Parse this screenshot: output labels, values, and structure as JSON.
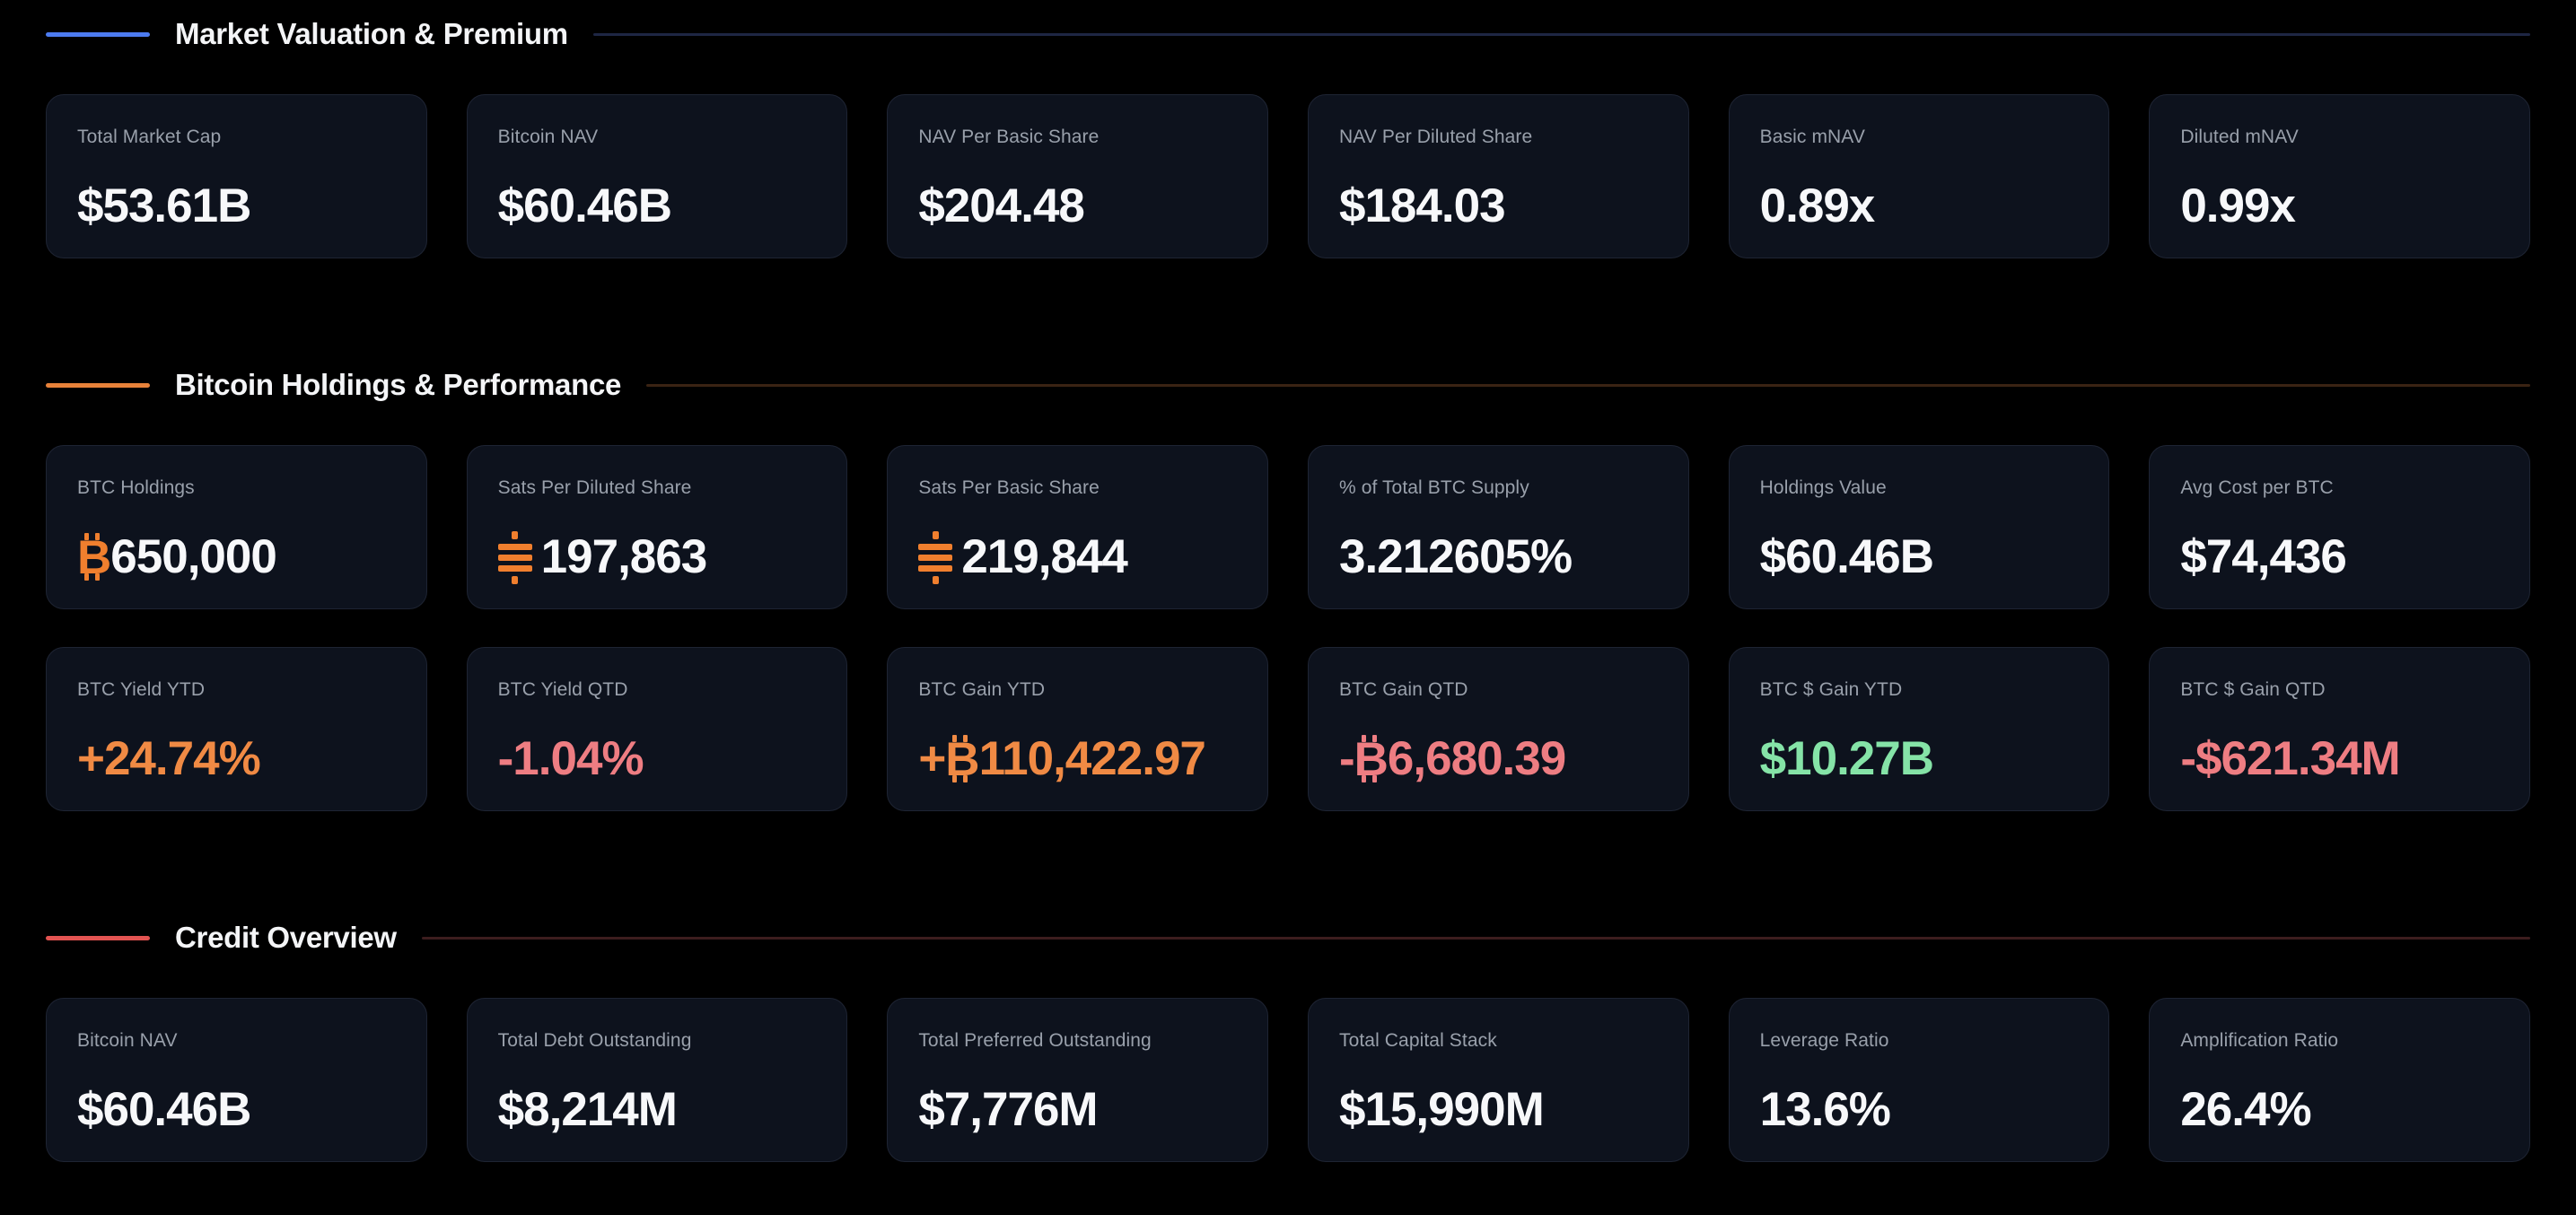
{
  "page": {
    "bg": "#000000"
  },
  "colors": {
    "white": "#f7f8fa",
    "orange": "#f08a44",
    "pink": "#ee7d82",
    "green": "#85e3a7",
    "bitcoin": "#f07f2e",
    "label": "#99a0ab",
    "card_bg": "#0d121d",
    "card_border": "#1e2433"
  },
  "sections": [
    {
      "title": "Market Valuation & Premium",
      "accent": "#4c7bf0",
      "rule_color": "#1e2644",
      "rows": [
        [
          {
            "label": "Total Market Cap",
            "value": "$53.61B",
            "parts": [
              {
                "kind": "text",
                "text": "$53.61B",
                "color": "white"
              }
            ]
          },
          {
            "label": "Bitcoin NAV",
            "value": "$60.46B",
            "parts": [
              {
                "kind": "text",
                "text": "$60.46B",
                "color": "white"
              }
            ]
          },
          {
            "label": "NAV Per Basic Share",
            "value": "$204.48",
            "parts": [
              {
                "kind": "text",
                "text": "$204.48",
                "color": "white"
              }
            ]
          },
          {
            "label": "NAV Per Diluted Share",
            "value": "$184.03",
            "parts": [
              {
                "kind": "text",
                "text": "$184.03",
                "color": "white"
              }
            ]
          },
          {
            "label": "Basic mNAV",
            "value": "0.89x",
            "parts": [
              {
                "kind": "text",
                "text": "0.89x",
                "color": "white"
              }
            ]
          },
          {
            "label": "Diluted mNAV",
            "value": "0.99x",
            "parts": [
              {
                "kind": "text",
                "text": "0.99x",
                "color": "white"
              }
            ]
          }
        ]
      ]
    },
    {
      "title": "Bitcoin Holdings & Performance",
      "accent": "#e8823a",
      "rule_color": "#3a2313",
      "rows": [
        [
          {
            "label": "BTC Holdings",
            "value": "₿650,000",
            "parts": [
              {
                "kind": "btc",
                "color": "bitcoin"
              },
              {
                "kind": "text",
                "text": "650,000",
                "color": "white"
              }
            ]
          },
          {
            "label": "Sats Per Diluted Share",
            "value": "197,863",
            "parts": [
              {
                "kind": "sats",
                "color": "bitcoin"
              },
              {
                "kind": "text",
                "text": "197,863",
                "color": "white"
              }
            ]
          },
          {
            "label": "Sats Per Basic Share",
            "value": "219,844",
            "parts": [
              {
                "kind": "sats",
                "color": "bitcoin"
              },
              {
                "kind": "text",
                "text": "219,844",
                "color": "white"
              }
            ]
          },
          {
            "label": "% of Total BTC Supply",
            "value": "3.212605%",
            "parts": [
              {
                "kind": "text",
                "text": "3.212605%",
                "color": "white"
              }
            ]
          },
          {
            "label": "Holdings Value",
            "value": "$60.46B",
            "parts": [
              {
                "kind": "text",
                "text": "$60.46B",
                "color": "white"
              }
            ]
          },
          {
            "label": "Avg Cost per BTC",
            "value": "$74,436",
            "parts": [
              {
                "kind": "text",
                "text": "$74,436",
                "color": "white"
              }
            ]
          }
        ],
        [
          {
            "label": "BTC Yield YTD",
            "value": "+24.74%",
            "parts": [
              {
                "kind": "text",
                "text": "+24.74%",
                "color": "orange"
              }
            ]
          },
          {
            "label": "BTC Yield QTD",
            "value": "-1.04%",
            "parts": [
              {
                "kind": "text",
                "text": "-1.04%",
                "color": "pink"
              }
            ]
          },
          {
            "label": "BTC Gain YTD",
            "value": "+₿110,422.97",
            "parts": [
              {
                "kind": "text",
                "text": "+",
                "color": "orange"
              },
              {
                "kind": "btc",
                "color": "orange"
              },
              {
                "kind": "text",
                "text": "110,422.97",
                "color": "orange"
              }
            ]
          },
          {
            "label": "BTC Gain QTD",
            "value": "-₿6,680.39",
            "parts": [
              {
                "kind": "text",
                "text": "-",
                "color": "pink"
              },
              {
                "kind": "btc",
                "color": "pink"
              },
              {
                "kind": "text",
                "text": "6,680.39",
                "color": "pink"
              }
            ]
          },
          {
            "label": "BTC $ Gain YTD",
            "value": "$10.27B",
            "parts": [
              {
                "kind": "text",
                "text": "$10.27B",
                "color": "green"
              }
            ]
          },
          {
            "label": "BTC $ Gain QTD",
            "value": "-$621.34M",
            "parts": [
              {
                "kind": "text",
                "text": "-$621.34M",
                "color": "pink"
              }
            ]
          }
        ]
      ]
    },
    {
      "title": "Credit Overview",
      "accent": "#e25351",
      "rule_color": "#3c1d1e",
      "rows": [
        [
          {
            "label": "Bitcoin NAV",
            "value": "$60.46B",
            "parts": [
              {
                "kind": "text",
                "text": "$60.46B",
                "color": "white"
              }
            ]
          },
          {
            "label": "Total Debt Outstanding",
            "value": "$8,214M",
            "parts": [
              {
                "kind": "text",
                "text": "$8,214M",
                "color": "white"
              }
            ]
          },
          {
            "label": "Total Preferred Outstanding",
            "value": "$7,776M",
            "parts": [
              {
                "kind": "text",
                "text": "$7,776M",
                "color": "white"
              }
            ]
          },
          {
            "label": "Total Capital Stack",
            "value": "$15,990M",
            "parts": [
              {
                "kind": "text",
                "text": "$15,990M",
                "color": "white"
              }
            ]
          },
          {
            "label": "Leverage Ratio",
            "value": "13.6%",
            "parts": [
              {
                "kind": "text",
                "text": "13.6%",
                "color": "white"
              }
            ]
          },
          {
            "label": "Amplification Ratio",
            "value": "26.4%",
            "parts": [
              {
                "kind": "text",
                "text": "26.4%",
                "color": "white"
              }
            ]
          }
        ]
      ]
    }
  ]
}
